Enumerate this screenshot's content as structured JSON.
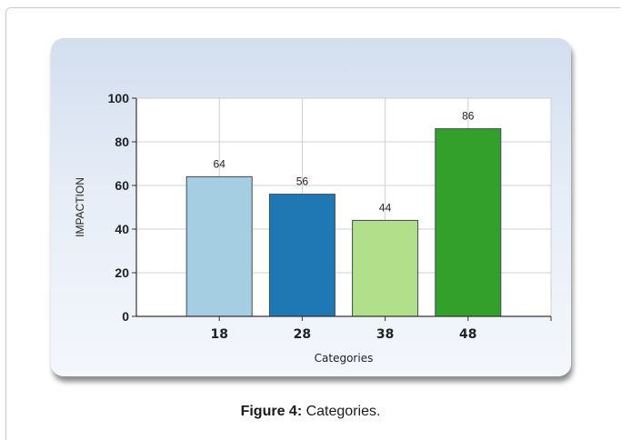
{
  "caption": {
    "label": "Figure 4:",
    "text": "Categories."
  },
  "chart_data": {
    "type": "bar",
    "categories": [
      "18",
      "28",
      "38",
      "48"
    ],
    "values": [
      64,
      56,
      44,
      86
    ],
    "data_labels": [
      "64",
      "56",
      "44",
      "86"
    ],
    "bar_colors": [
      "#a6cee3",
      "#1f78b4",
      "#b2df8a",
      "#33a02c"
    ],
    "title": "",
    "xlabel": "Categories",
    "ylabel": "IMPACTION",
    "ylim": [
      0,
      100
    ],
    "yticks": [
      "0",
      "20",
      "40",
      "60",
      "80",
      "100"
    ],
    "grid": true,
    "legend": "none"
  }
}
